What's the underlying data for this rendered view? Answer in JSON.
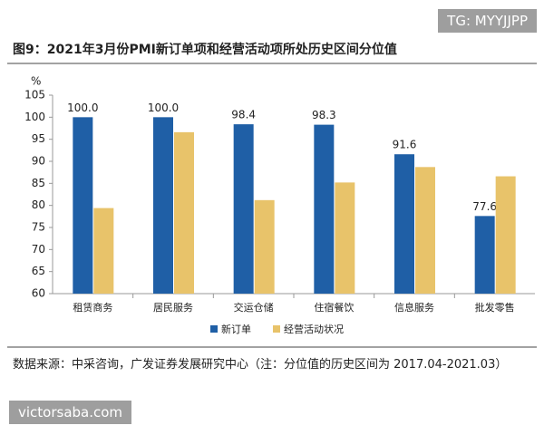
{
  "watermark_top": "TG: MYYJJPP",
  "watermark_bottom": "victorsaba.com",
  "source": "数据来源：中采咨询，广发证券发展研究中心（注：分位值的历史区间为 2017.04-2021.03）",
  "chart_data": {
    "type": "bar",
    "title": "图9：2021年3月份PMI新订单项和经营活动项所处历史区间分位值",
    "y_label": "%",
    "categories": [
      "租赁商务",
      "居民服务",
      "交运仓储",
      "住宿餐饮",
      "信息服务",
      "批发零售"
    ],
    "series": [
      {
        "name": "新订单",
        "color": "#1f5fa6",
        "values": [
          100,
          100,
          98.4,
          98.3,
          91.6,
          77.6
        ],
        "value_labels": [
          "100.0",
          "100.0",
          "98.4",
          "98.3",
          "91.6",
          "77.6"
        ]
      },
      {
        "name": "经营活动状况",
        "color": "#e8c36a",
        "values": [
          79.4,
          96.6,
          81.2,
          85.2,
          88.7,
          86.6
        ]
      }
    ],
    "ylim": [
      60,
      105
    ],
    "yticks": [
      60,
      65,
      70,
      75,
      80,
      85,
      90,
      95,
      100,
      105
    ]
  }
}
